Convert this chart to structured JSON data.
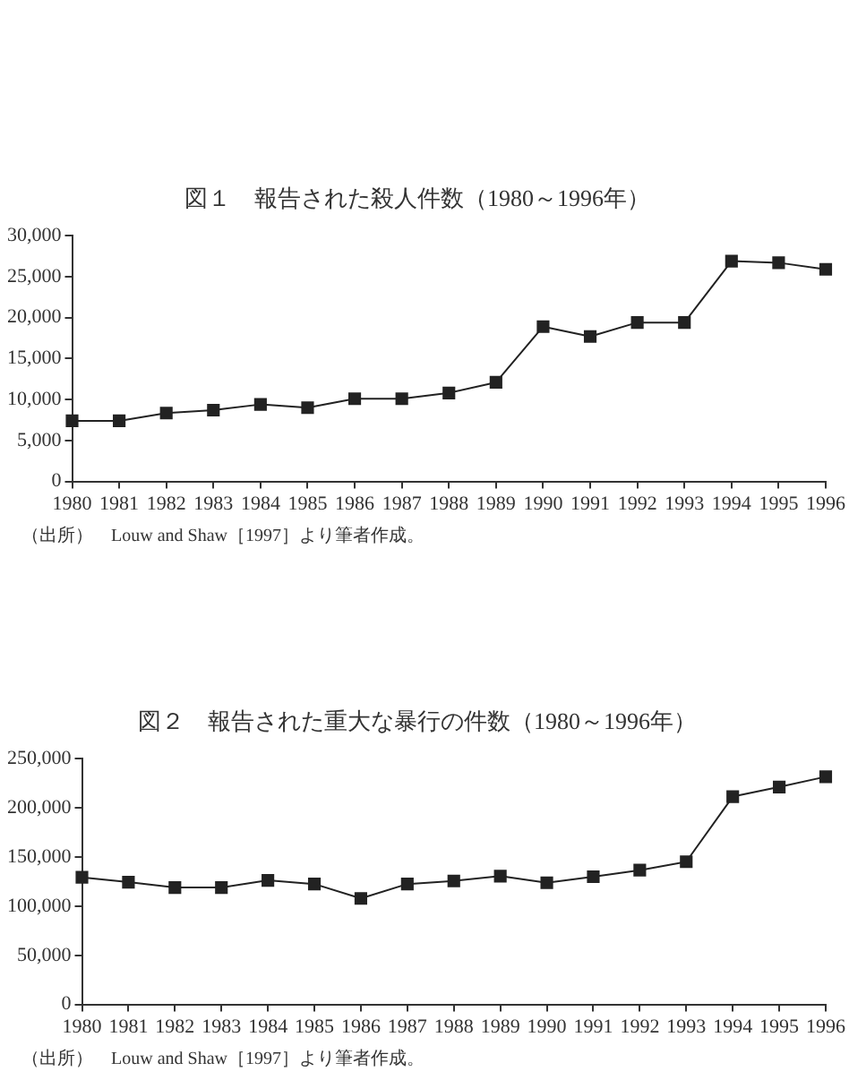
{
  "chart_data": [
    {
      "type": "line",
      "title": "図１　報告された殺人件数（1980～1996年）",
      "categories": [
        "1980",
        "1981",
        "1982",
        "1983",
        "1984",
        "1985",
        "1986",
        "1987",
        "1988",
        "1989",
        "1990",
        "1991",
        "1992",
        "1993",
        "1994",
        "1995",
        "1996"
      ],
      "series": [
        {
          "color": "#222222",
          "values": [
            7400,
            7400,
            8350,
            8700,
            9400,
            9000,
            10100,
            10100,
            10800,
            12100,
            18900,
            17700,
            19400,
            19400,
            26900,
            26700,
            25900
          ]
        }
      ],
      "ylim": [
        0,
        30000
      ],
      "yticks": [
        {
          "value": 0,
          "label": "0"
        },
        {
          "value": 5000,
          "label": "5,000"
        },
        {
          "value": 10000,
          "label": "10,000"
        },
        {
          "value": 15000,
          "label": "15,000"
        },
        {
          "value": 20000,
          "label": "20,000"
        },
        {
          "value": 25000,
          "label": "25,000"
        },
        {
          "value": 30000,
          "label": "30,000"
        }
      ],
      "marker": "square",
      "grid": false,
      "legend": false,
      "annotations": [
        "（出所）　Louw and Shaw［1997］より筆者作成。"
      ]
    },
    {
      "type": "line",
      "title": "図２　報告された重大な暴行の件数（1980～1996年）",
      "categories": [
        "1980",
        "1981",
        "1982",
        "1983",
        "1984",
        "1985",
        "1986",
        "1987",
        "1988",
        "1989",
        "1990",
        "1991",
        "1992",
        "1993",
        "1994",
        "1995",
        "1996"
      ],
      "series": [
        {
          "color": "#222222",
          "values": [
            129300,
            124400,
            118900,
            118900,
            126200,
            122500,
            107800,
            122500,
            125600,
            130500,
            123800,
            129900,
            136600,
            145200,
            211400,
            221200,
            231600
          ]
        }
      ],
      "ylim": [
        0,
        250000
      ],
      "yticks": [
        {
          "value": 0,
          "label": "0"
        },
        {
          "value": 50000,
          "label": "50,000"
        },
        {
          "value": 100000,
          "label": "100,000"
        },
        {
          "value": 150000,
          "label": "150,000"
        },
        {
          "value": 200000,
          "label": "200,000"
        },
        {
          "value": 250000,
          "label": "250,000"
        }
      ],
      "marker": "square",
      "grid": false,
      "legend": false,
      "annotations": [
        "（出所）　Louw and Shaw［1997］より筆者作成。"
      ]
    }
  ]
}
